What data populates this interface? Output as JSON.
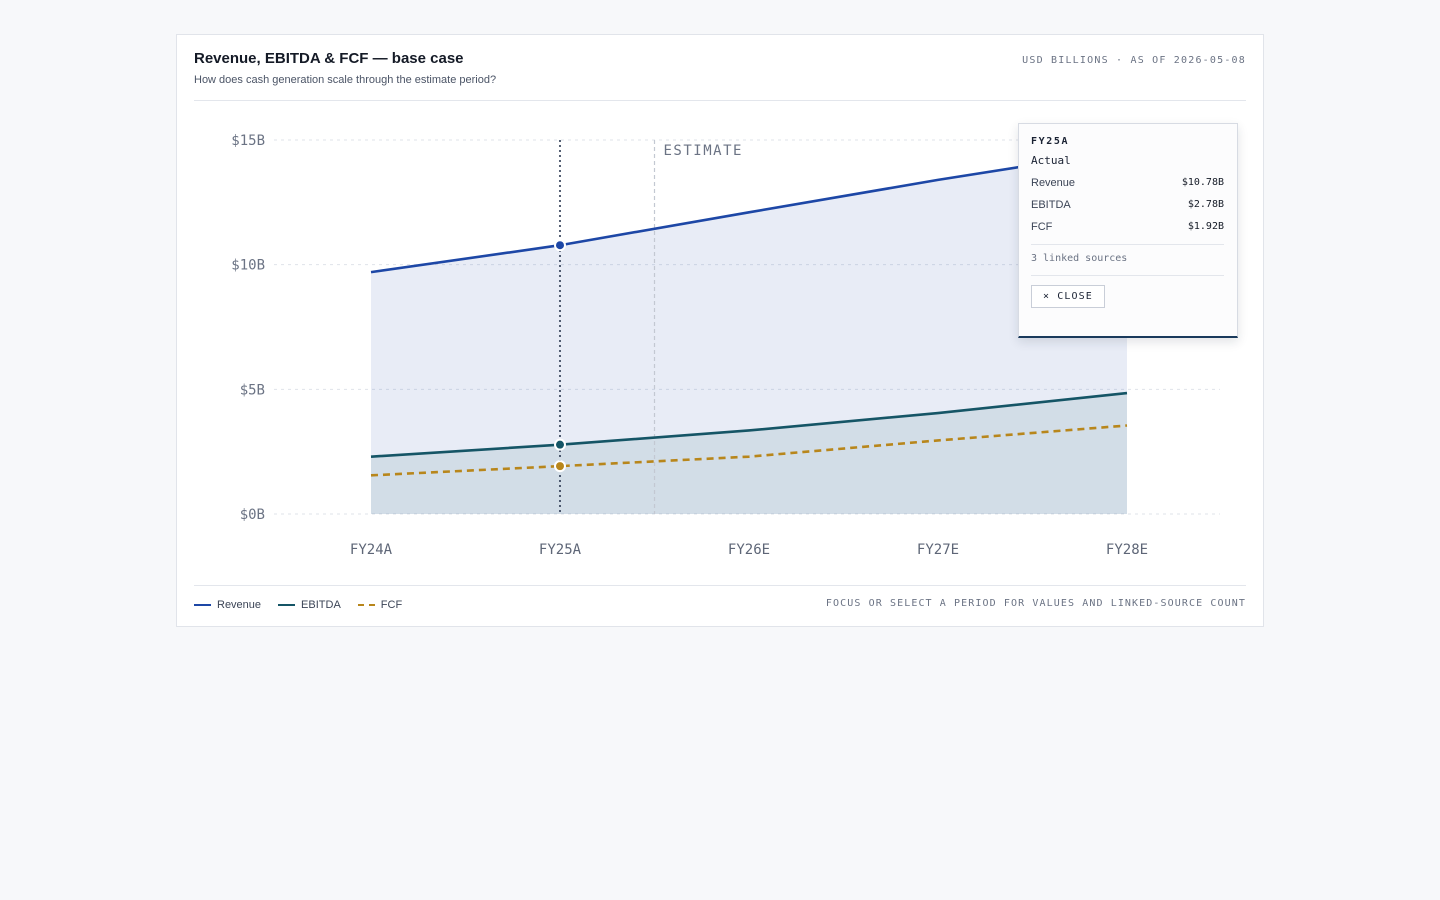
{
  "header": {
    "title": "Revenue, EBITDA & FCF — base case",
    "subtitle": "How does cash generation scale through the estimate period?",
    "unit": "USD BILLIONS",
    "as_of": "AS OF 2026-05-08"
  },
  "chart_data": {
    "type": "line",
    "title": "Revenue, EBITDA & FCF — base case",
    "categories": [
      "FY24A",
      "FY25A",
      "FY26E",
      "FY27E",
      "FY28E"
    ],
    "y_tick_values": [
      0,
      5,
      10,
      15
    ],
    "y_tick_labels": [
      "$0B",
      "$5B",
      "$10B",
      "$15B"
    ],
    "ylim": [
      0,
      15
    ],
    "grid": true,
    "estimate_label": "ESTIMATE",
    "estimate_start_index": 2,
    "selected_index": 1,
    "series": [
      {
        "name": "Revenue",
        "values": [
          9.7,
          10.78,
          12.1,
          13.4,
          14.6
        ],
        "color": "#1d47a6",
        "dashed": false,
        "filled": true
      },
      {
        "name": "EBITDA",
        "values": [
          2.3,
          2.78,
          3.35,
          4.05,
          4.85
        ],
        "color": "#155566",
        "dashed": false,
        "filled": true
      },
      {
        "name": "FCF",
        "values": [
          1.55,
          1.92,
          2.3,
          2.95,
          3.55
        ],
        "color": "#b8861b",
        "dashed": true,
        "filled": false
      }
    ]
  },
  "tooltip": {
    "period": "FY25A",
    "status": "Actual",
    "rows": [
      {
        "label": "Revenue",
        "value": "$10.78B"
      },
      {
        "label": "EBITDA",
        "value": "$2.78B"
      },
      {
        "label": "FCF",
        "value": "$1.92B"
      }
    ],
    "sources": "3 linked sources",
    "close_label": "× CLOSE"
  },
  "legend": [
    {
      "label": "Revenue",
      "color": "#1d47a6",
      "dashed": false
    },
    {
      "label": "EBITDA",
      "color": "#155566",
      "dashed": false
    },
    {
      "label": "FCF",
      "color": "#b8861b",
      "dashed": true
    }
  ],
  "footer": {
    "hint": "FOCUS OR SELECT A PERIOD FOR VALUES AND LINKED-SOURCE COUNT"
  }
}
